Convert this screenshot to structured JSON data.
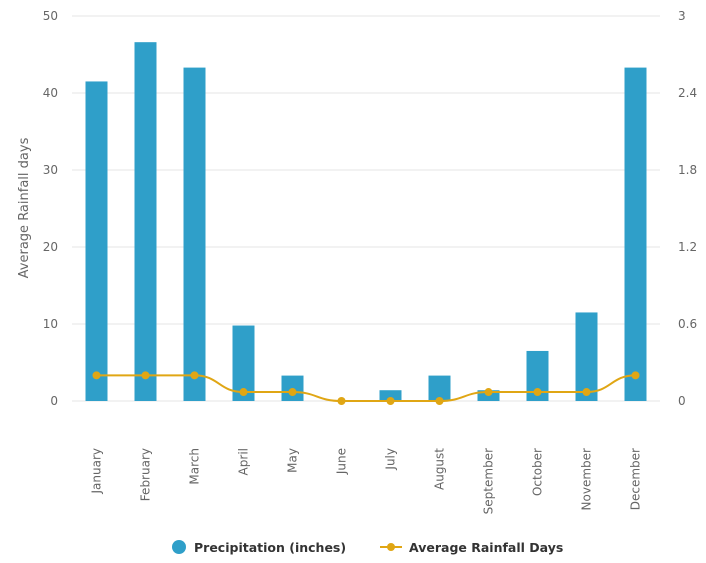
{
  "chart_data": {
    "type": "bar",
    "categories": [
      "January",
      "February",
      "March",
      "April",
      "May",
      "June",
      "July",
      "August",
      "September",
      "October",
      "November",
      "December"
    ],
    "series": [
      {
        "name": "Precipitation (inches)",
        "type": "bar",
        "axis": "left",
        "color": "#2f9fc9",
        "values": [
          41.5,
          46.6,
          43.3,
          9.8,
          3.3,
          0,
          1.4,
          3.3,
          1.4,
          6.5,
          11.5,
          43.3
        ]
      },
      {
        "name": "Average Rainfall Days",
        "type": "line",
        "axis": "right",
        "color": "#e0a614",
        "values": [
          0.2,
          0.2,
          0.2,
          0.07,
          0.07,
          0.0,
          0.0,
          0.0,
          0.07,
          0.07,
          0.07,
          0.2
        ]
      }
    ],
    "ylabel": "Average Rainfall days",
    "ylim": [
      0,
      50
    ],
    "yticks": [
      "0",
      "10",
      "20",
      "30",
      "40",
      "50"
    ],
    "y2lim": [
      0,
      3
    ],
    "y2ticks": [
      "0",
      "0.6",
      "1.2",
      "1.8",
      "2.4",
      "3"
    ],
    "grid": true,
    "legend_position": "bottom"
  }
}
